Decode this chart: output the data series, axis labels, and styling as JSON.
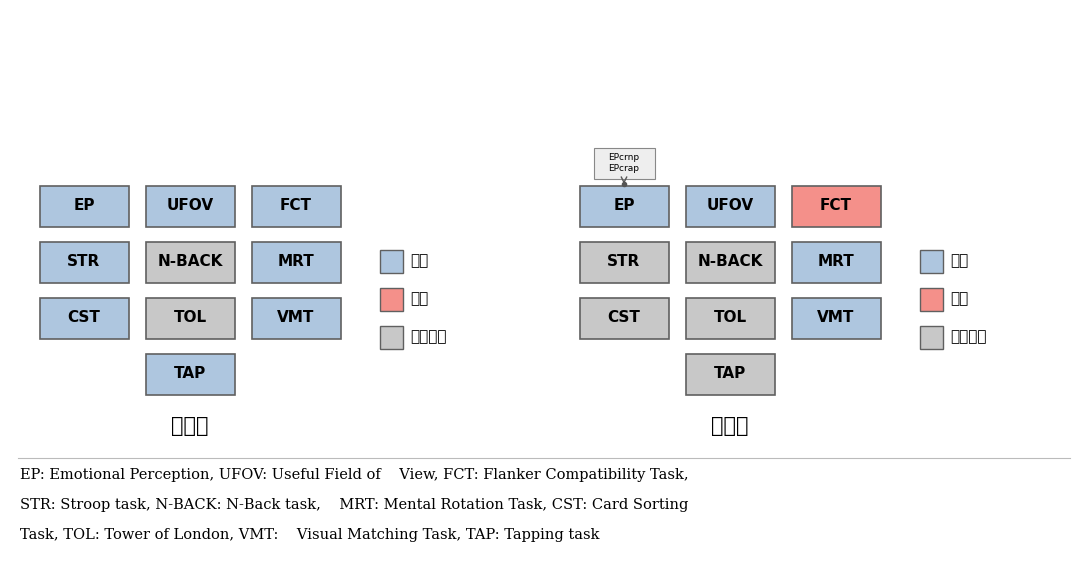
{
  "bg_color": "#ffffff",
  "blue_color": "#aec6df",
  "red_color": "#f4908a",
  "gray_color": "#c8c8c8",
  "depression": {
    "label": "우울증",
    "boxes": [
      {
        "text": "EP",
        "col": 0,
        "row": 0,
        "color": "blue"
      },
      {
        "text": "UFOV",
        "col": 1,
        "row": 0,
        "color": "blue"
      },
      {
        "text": "FCT",
        "col": 2,
        "row": 0,
        "color": "blue"
      },
      {
        "text": "STR",
        "col": 0,
        "row": 1,
        "color": "blue"
      },
      {
        "text": "N-BACK",
        "col": 1,
        "row": 1,
        "color": "gray"
      },
      {
        "text": "MRT",
        "col": 2,
        "row": 1,
        "color": "blue"
      },
      {
        "text": "CST",
        "col": 0,
        "row": 2,
        "color": "blue"
      },
      {
        "text": "TOL",
        "col": 1,
        "row": 2,
        "color": "gray"
      },
      {
        "text": "VMT",
        "col": 2,
        "row": 2,
        "color": "blue"
      },
      {
        "text": "TAP",
        "col": 1,
        "row": 3,
        "color": "blue"
      }
    ]
  },
  "bipolar": {
    "label": "조울병",
    "boxes": [
      {
        "text": "EP",
        "col": 0,
        "row": 0,
        "color": "blue"
      },
      {
        "text": "UFOV",
        "col": 1,
        "row": 0,
        "color": "blue"
      },
      {
        "text": "FCT",
        "col": 2,
        "row": 0,
        "color": "red"
      },
      {
        "text": "STR",
        "col": 0,
        "row": 1,
        "color": "gray"
      },
      {
        "text": "N-BACK",
        "col": 1,
        "row": 1,
        "color": "gray"
      },
      {
        "text": "MRT",
        "col": 2,
        "row": 1,
        "color": "blue"
      },
      {
        "text": "CST",
        "col": 0,
        "row": 2,
        "color": "gray"
      },
      {
        "text": "TOL",
        "col": 1,
        "row": 2,
        "color": "gray"
      },
      {
        "text": "VMT",
        "col": 2,
        "row": 2,
        "color": "blue"
      },
      {
        "text": "TAP",
        "col": 1,
        "row": 3,
        "color": "gray"
      }
    ],
    "annotation_text": "EPcrnp\nEPcrap",
    "annotation_col": 0,
    "annotation_row": 0
  },
  "legend_items": [
    {
      "label": "감소",
      "color": "blue"
    },
    {
      "label": "증가",
      "color": "red"
    },
    {
      "label": "차이없음",
      "color": "gray"
    }
  ],
  "footnote_lines": [
    "EP: Emotional Perception, UFOV: Useful Field of    View, FCT: Flanker Compatibility Task,",
    "STR: Stroop task, N-BACK: N-Back task,    MRT: Mental Rotation Task, CST: Card Sorting",
    "Task, TOL: Tower of London, VMT:    Visual Matching Task, TAP: Tapping task"
  ]
}
